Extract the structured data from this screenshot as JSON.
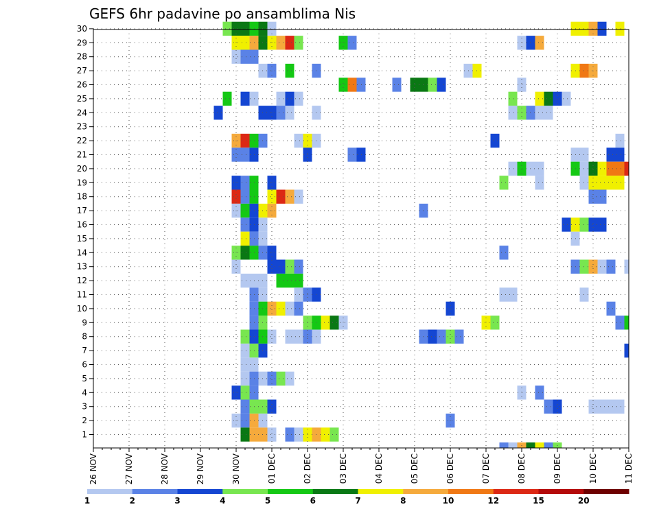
{
  "chart_data": {
    "type": "heatmap",
    "title": "GEFS 6hr padavine po ansamblima Nis",
    "x_tick_labels": [
      "26 NOV",
      "27 NOV",
      "28 NOV",
      "29 NOV",
      "30 NOV",
      "01 DEC",
      "02 DEC",
      "03 DEC",
      "04 DEC",
      "05 DEC",
      "06 DEC",
      "07 DEC",
      "08 DEC",
      "09 DEC",
      "10 DEC",
      "11 DEC"
    ],
    "y_tick_labels": [
      "1",
      "2",
      "3",
      "4",
      "5",
      "6",
      "7",
      "8",
      "9",
      "10",
      "11",
      "12",
      "13",
      "14",
      "15",
      "16",
      "17",
      "18",
      "19",
      "20",
      "21",
      "22",
      "23",
      "24",
      "25",
      "26",
      "27",
      "28",
      "29",
      "30"
    ],
    "xlim": [
      0,
      15
    ],
    "ylim": [
      0.5,
      30.5
    ],
    "grid": true,
    "colorbar": {
      "labels": [
        "1",
        "2",
        "3",
        "4",
        "5",
        "6",
        "7",
        "8",
        "10",
        "12",
        "15",
        "20"
      ],
      "colors": [
        "#b4c8f0",
        "#5a82e6",
        "#1446d2",
        "#78e650",
        "#14c814",
        "#0a7814",
        "#f0f000",
        "#f5aa3c",
        "#f07814",
        "#dc2814",
        "#b40a0a",
        "#6e0000"
      ]
    },
    "cells": [
      [
        30,
        3.75,
        3
      ],
      [
        30,
        4.0,
        5
      ],
      [
        30,
        4.25,
        5
      ],
      [
        30,
        4.5,
        4
      ],
      [
        30,
        4.75,
        5
      ],
      [
        30,
        5.0,
        0
      ],
      [
        30,
        13.5,
        6
      ],
      [
        30,
        13.75,
        6
      ],
      [
        30,
        14.0,
        7
      ],
      [
        30,
        14.25,
        2
      ],
      [
        30,
        14.75,
        6
      ],
      [
        29,
        4.0,
        6
      ],
      [
        29,
        4.25,
        6
      ],
      [
        29,
        4.5,
        7
      ],
      [
        29,
        4.75,
        5
      ],
      [
        29,
        5.0,
        6
      ],
      [
        29,
        5.25,
        7
      ],
      [
        29,
        5.5,
        9
      ],
      [
        29,
        5.75,
        3
      ],
      [
        29,
        7.0,
        4
      ],
      [
        29,
        7.25,
        1
      ],
      [
        29,
        12.0,
        0
      ],
      [
        29,
        12.25,
        2
      ],
      [
        29,
        12.5,
        7
      ],
      [
        28,
        4.0,
        0
      ],
      [
        28,
        4.25,
        1
      ],
      [
        28,
        4.5,
        1
      ],
      [
        27,
        4.75,
        0
      ],
      [
        27,
        5.0,
        1
      ],
      [
        27,
        5.5,
        4
      ],
      [
        27,
        6.25,
        1
      ],
      [
        27,
        10.5,
        0
      ],
      [
        27,
        10.75,
        6
      ],
      [
        27,
        13.5,
        6
      ],
      [
        27,
        13.75,
        8
      ],
      [
        27,
        14.0,
        7
      ],
      [
        26,
        7.0,
        4
      ],
      [
        26,
        7.25,
        8
      ],
      [
        26,
        7.5,
        1
      ],
      [
        26,
        8.5,
        1
      ],
      [
        26,
        9.0,
        5
      ],
      [
        26,
        9.25,
        5
      ],
      [
        26,
        9.5,
        3
      ],
      [
        26,
        9.75,
        2
      ],
      [
        26,
        12.0,
        0
      ],
      [
        25,
        3.75,
        4
      ],
      [
        25,
        4.25,
        2
      ],
      [
        25,
        4.5,
        0
      ],
      [
        25,
        5.25,
        0
      ],
      [
        25,
        5.5,
        2
      ],
      [
        25,
        5.75,
        0
      ],
      [
        25,
        11.75,
        3
      ],
      [
        25,
        12.5,
        6
      ],
      [
        25,
        12.75,
        5
      ],
      [
        25,
        13.0,
        2
      ],
      [
        25,
        13.25,
        0
      ],
      [
        24,
        3.5,
        2
      ],
      [
        24,
        4.75,
        2
      ],
      [
        24,
        5.0,
        2
      ],
      [
        24,
        5.25,
        1
      ],
      [
        24,
        5.5,
        0
      ],
      [
        24,
        6.25,
        0
      ],
      [
        24,
        11.75,
        0
      ],
      [
        24,
        12.0,
        3
      ],
      [
        24,
        12.25,
        1
      ],
      [
        24,
        12.5,
        0
      ],
      [
        24,
        12.75,
        0
      ],
      [
        22,
        4.0,
        7
      ],
      [
        22,
        4.25,
        9
      ],
      [
        22,
        4.5,
        4
      ],
      [
        22,
        4.75,
        1
      ],
      [
        22,
        5.75,
        0
      ],
      [
        22,
        6.0,
        6
      ],
      [
        22,
        6.25,
        0
      ],
      [
        22,
        11.25,
        2
      ],
      [
        22,
        14.75,
        0
      ],
      [
        21,
        4.0,
        1
      ],
      [
        21,
        4.25,
        1
      ],
      [
        21,
        4.5,
        2
      ],
      [
        21,
        6.0,
        2
      ],
      [
        21,
        7.25,
        1
      ],
      [
        21,
        7.5,
        2
      ],
      [
        21,
        13.5,
        0
      ],
      [
        21,
        13.75,
        0
      ],
      [
        21,
        14.5,
        2
      ],
      [
        21,
        14.75,
        2
      ],
      [
        20,
        11.75,
        0
      ],
      [
        20,
        12.0,
        4
      ],
      [
        20,
        12.25,
        0
      ],
      [
        20,
        12.5,
        0
      ],
      [
        20,
        13.5,
        4
      ],
      [
        20,
        13.75,
        0
      ],
      [
        20,
        14.0,
        5
      ],
      [
        20,
        14.25,
        6
      ],
      [
        20,
        14.5,
        8
      ],
      [
        20,
        14.75,
        8
      ],
      [
        20,
        15.0,
        9
      ],
      [
        19,
        4.0,
        2
      ],
      [
        19,
        4.25,
        1
      ],
      [
        19,
        4.5,
        4
      ],
      [
        19,
        5.0,
        2
      ],
      [
        19,
        11.5,
        3
      ],
      [
        19,
        12.5,
        0
      ],
      [
        19,
        13.75,
        0
      ],
      [
        19,
        14.0,
        6
      ],
      [
        19,
        14.25,
        6
      ],
      [
        19,
        14.5,
        6
      ],
      [
        19,
        14.75,
        6
      ],
      [
        18,
        4.0,
        9
      ],
      [
        18,
        4.25,
        1
      ],
      [
        18,
        4.5,
        4
      ],
      [
        18,
        5.0,
        6
      ],
      [
        18,
        5.25,
        9
      ],
      [
        18,
        5.5,
        7
      ],
      [
        18,
        5.75,
        0
      ],
      [
        18,
        14.0,
        1
      ],
      [
        18,
        14.25,
        1
      ],
      [
        17,
        4.0,
        0
      ],
      [
        17,
        4.25,
        4
      ],
      [
        17,
        4.5,
        2
      ],
      [
        17,
        4.75,
        6
      ],
      [
        17,
        5.0,
        7
      ],
      [
        17,
        9.25,
        1
      ],
      [
        16,
        4.25,
        1
      ],
      [
        16,
        4.5,
        2
      ],
      [
        16,
        4.75,
        0
      ],
      [
        16,
        13.25,
        2
      ],
      [
        16,
        13.5,
        6
      ],
      [
        16,
        13.75,
        3
      ],
      [
        16,
        14.0,
        2
      ],
      [
        16,
        14.25,
        2
      ],
      [
        15,
        4.25,
        6
      ],
      [
        15,
        4.5,
        1
      ],
      [
        15,
        4.75,
        0
      ],
      [
        15,
        13.5,
        0
      ],
      [
        14,
        4.0,
        3
      ],
      [
        14,
        4.25,
        5
      ],
      [
        14,
        4.5,
        4
      ],
      [
        14,
        4.75,
        1
      ],
      [
        14,
        5.0,
        2
      ],
      [
        14,
        11.5,
        1
      ],
      [
        13,
        4.0,
        0
      ],
      [
        13,
        5.0,
        2
      ],
      [
        13,
        5.25,
        2
      ],
      [
        13,
        5.5,
        3
      ],
      [
        13,
        5.75,
        1
      ],
      [
        13,
        13.5,
        1
      ],
      [
        13,
        13.75,
        3
      ],
      [
        13,
        14.0,
        7
      ],
      [
        13,
        14.25,
        0
      ],
      [
        13,
        14.5,
        1
      ],
      [
        13,
        15.0,
        0
      ],
      [
        12,
        4.25,
        0
      ],
      [
        12,
        4.5,
        0
      ],
      [
        12,
        4.75,
        0
      ],
      [
        12,
        5.25,
        4
      ],
      [
        12,
        5.5,
        4
      ],
      [
        12,
        5.75,
        4
      ],
      [
        11,
        4.5,
        1
      ],
      [
        11,
        4.75,
        0
      ],
      [
        11,
        5.75,
        0
      ],
      [
        11,
        6.0,
        1
      ],
      [
        11,
        6.25,
        2
      ],
      [
        11,
        11.5,
        0
      ],
      [
        11,
        11.75,
        0
      ],
      [
        11,
        13.75,
        0
      ],
      [
        10,
        4.5,
        1
      ],
      [
        10,
        4.75,
        4
      ],
      [
        10,
        5.0,
        7
      ],
      [
        10,
        5.25,
        6
      ],
      [
        10,
        5.5,
        0
      ],
      [
        10,
        5.75,
        1
      ],
      [
        10,
        10.0,
        2
      ],
      [
        10,
        14.5,
        1
      ],
      [
        9,
        4.5,
        1
      ],
      [
        9,
        4.75,
        3
      ],
      [
        9,
        6.0,
        3
      ],
      [
        9,
        6.25,
        4
      ],
      [
        9,
        6.5,
        6
      ],
      [
        9,
        6.75,
        5
      ],
      [
        9,
        7.0,
        0
      ],
      [
        9,
        11.0,
        6
      ],
      [
        9,
        11.25,
        3
      ],
      [
        9,
        14.75,
        1
      ],
      [
        9,
        15.0,
        4
      ],
      [
        8,
        4.25,
        3
      ],
      [
        8,
        4.5,
        2
      ],
      [
        8,
        4.75,
        4
      ],
      [
        8,
        5.0,
        0
      ],
      [
        8,
        5.5,
        0
      ],
      [
        8,
        5.75,
        0
      ],
      [
        8,
        6.0,
        1
      ],
      [
        8,
        6.25,
        0
      ],
      [
        8,
        9.25,
        1
      ],
      [
        8,
        9.5,
        2
      ],
      [
        8,
        9.75,
        1
      ],
      [
        8,
        10.0,
        3
      ],
      [
        8,
        10.25,
        1
      ],
      [
        7,
        4.25,
        0
      ],
      [
        7,
        4.5,
        3
      ],
      [
        7,
        4.75,
        2
      ],
      [
        7,
        15.0,
        2
      ],
      [
        6,
        4.25,
        0
      ],
      [
        6,
        4.5,
        0
      ],
      [
        5,
        4.25,
        0
      ],
      [
        5,
        4.5,
        1
      ],
      [
        5,
        4.75,
        0
      ],
      [
        5,
        5.0,
        1
      ],
      [
        5,
        5.25,
        3
      ],
      [
        5,
        5.5,
        0
      ],
      [
        4,
        4.0,
        2
      ],
      [
        4,
        4.25,
        3
      ],
      [
        4,
        4.5,
        1
      ],
      [
        4,
        12.0,
        0
      ],
      [
        4,
        12.5,
        1
      ],
      [
        3,
        4.25,
        1
      ],
      [
        3,
        4.5,
        3
      ],
      [
        3,
        4.75,
        3
      ],
      [
        3,
        5.0,
        2
      ],
      [
        3,
        12.75,
        1
      ],
      [
        3,
        13.0,
        2
      ],
      [
        3,
        14.0,
        0
      ],
      [
        3,
        14.25,
        0
      ],
      [
        3,
        14.5,
        0
      ],
      [
        3,
        14.75,
        0
      ],
      [
        2,
        4.0,
        0
      ],
      [
        2,
        4.25,
        1
      ],
      [
        2,
        4.5,
        7
      ],
      [
        2,
        4.75,
        0
      ],
      [
        2,
        10.0,
        1
      ],
      [
        1,
        4.25,
        5
      ],
      [
        1,
        4.5,
        7
      ],
      [
        1,
        4.75,
        7
      ],
      [
        1,
        5.0,
        0
      ],
      [
        1,
        5.5,
        1
      ],
      [
        1,
        5.75,
        0
      ],
      [
        1,
        6.0,
        6
      ],
      [
        1,
        6.25,
        7
      ],
      [
        1,
        6.5,
        6
      ],
      [
        1,
        6.75,
        3
      ],
      [
        0,
        11.5,
        1
      ],
      [
        0,
        11.75,
        0
      ],
      [
        0,
        12.0,
        7
      ],
      [
        0,
        12.25,
        5
      ],
      [
        0,
        12.5,
        6
      ],
      [
        0,
        12.75,
        1
      ],
      [
        0,
        13.0,
        3
      ]
    ]
  }
}
